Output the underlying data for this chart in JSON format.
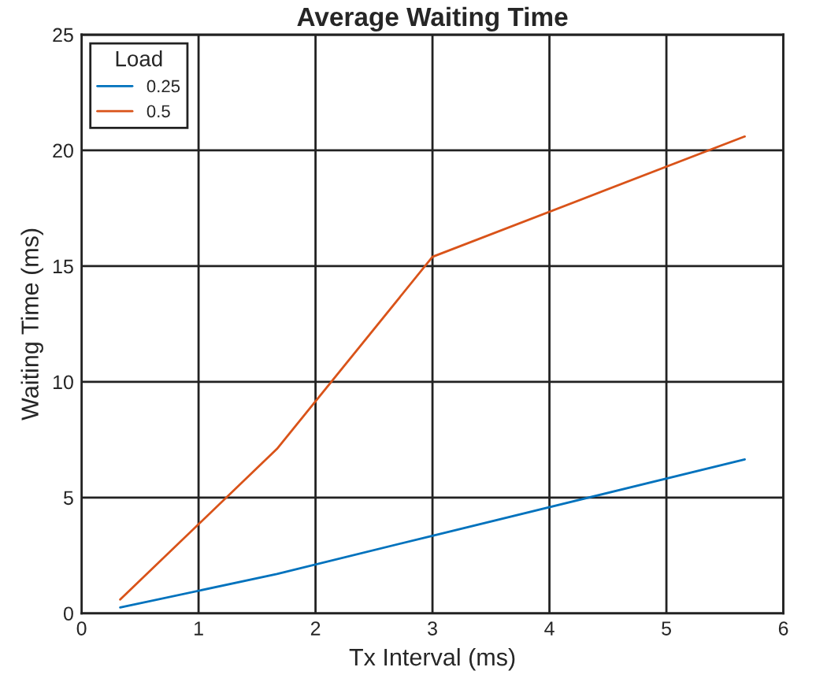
{
  "chart_data": {
    "type": "line",
    "title": "Average Waiting Time",
    "xlabel": "Tx Interval (ms)",
    "ylabel": "Waiting Time (ms)",
    "legend_title": "Load",
    "x": [
      0.33,
      1.67,
      3,
      5.67
    ],
    "series": [
      {
        "name": "0.25",
        "color": "#0072bd",
        "values": [
          0.25,
          1.7,
          3.35,
          6.65
        ]
      },
      {
        "name": "0.5",
        "color": "#d95319",
        "values": [
          0.6,
          7.1,
          15.4,
          20.6
        ]
      }
    ],
    "xlim": [
      0,
      6
    ],
    "xticks": [
      0,
      1,
      2,
      3,
      4,
      5,
      6
    ],
    "ylim": [
      0,
      25
    ],
    "yticks": [
      0,
      5,
      10,
      15,
      20,
      25
    ],
    "grid": true,
    "legend": "top left",
    "marker": "none",
    "line_style": "solid"
  }
}
